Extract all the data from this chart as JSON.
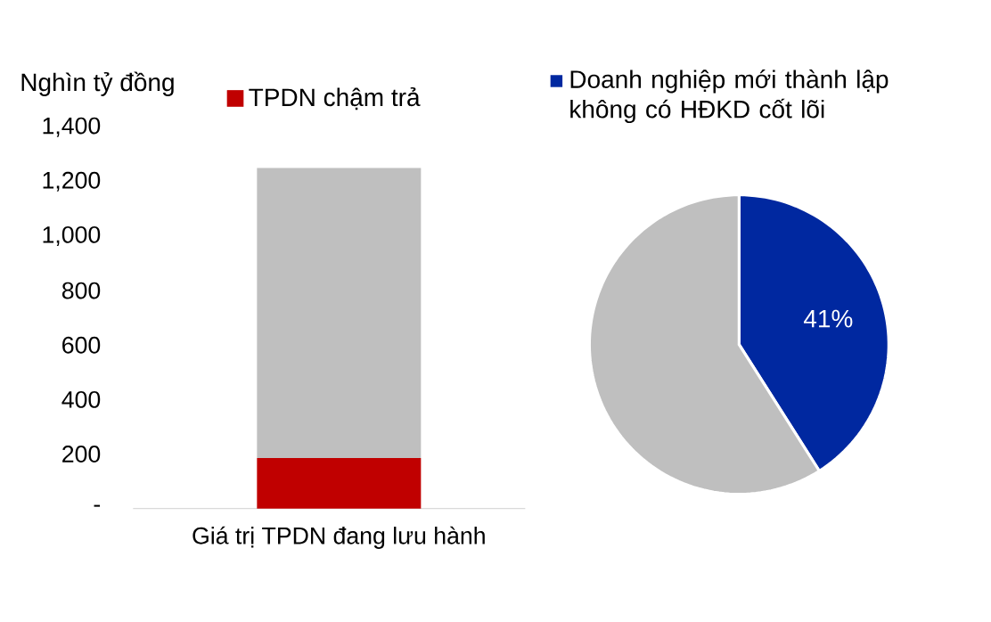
{
  "chart_data": [
    {
      "type": "bar",
      "ylabel": "Nghìn tỷ đồng",
      "categories": [
        "Giá trị TPDN đang lưu hành"
      ],
      "series": [
        {
          "name": "TPDN chậm trả",
          "color": "#c00000",
          "values": [
            185
          ]
        },
        {
          "color": "#bfbfbf",
          "values": [
            1065
          ]
        }
      ],
      "stacked": true,
      "ylim": [
        0,
        1400
      ],
      "yticks": [
        {
          "value": 0,
          "label": "-"
        },
        200,
        400,
        600,
        800,
        {
          "value": 1000,
          "label": "1,000"
        },
        {
          "value": 1200,
          "label": "1,200"
        },
        {
          "value": 1400,
          "label": "1,400"
        }
      ],
      "legend": "top"
    },
    {
      "type": "pie",
      "categories": [
        "Doanh nghiệp mới thành lập không có HĐKD cốt lõi",
        null
      ],
      "values": [
        41,
        59
      ],
      "colors": [
        "#0028a0",
        "#bfbfbf"
      ],
      "value_labels": [
        "41%",
        null
      ],
      "legend": "top"
    }
  ]
}
